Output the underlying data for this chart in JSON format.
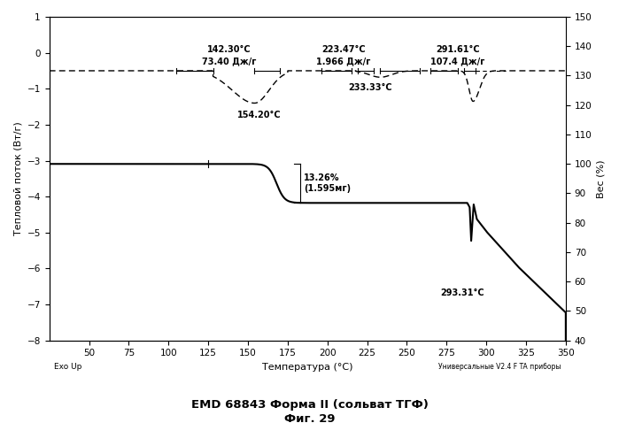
{
  "title": "EMD 68843 Форма II (сольват ТГФ)",
  "subtitle": "Фиг. 29",
  "xlabel": "Температура (°C)",
  "ylabel_left": "Тепловой поток (Вт/г)",
  "ylabel_right": "Вес (%)",
  "xlabel_left_note": "Exo Up",
  "xlabel_right_note": "Универсальные V2.4 F TA приборы",
  "xlim": [
    25,
    350
  ],
  "ylim_left": [
    -8,
    1
  ],
  "ylim_right": [
    40,
    150
  ],
  "ann1_temp": "142.30°C",
  "ann1_enthalpy": "73.40 Дж/г",
  "ann1_peak": "154.20°C",
  "ann2_temp": "223.47°C",
  "ann2_enthalpy": "1.966 Дж/г",
  "ann2_peak": "233.33°C",
  "ann3_temp": "291.61°C",
  "ann3_enthalpy": "107.4 Дж/г",
  "ann_tga": "13.26%\n(1.595мг)",
  "ann_tga_temp": "293.31°C",
  "dsc_baseline": -0.5,
  "tga_level1": 100.0,
  "tga_level2": 86.74,
  "bg_color": "#ffffff"
}
